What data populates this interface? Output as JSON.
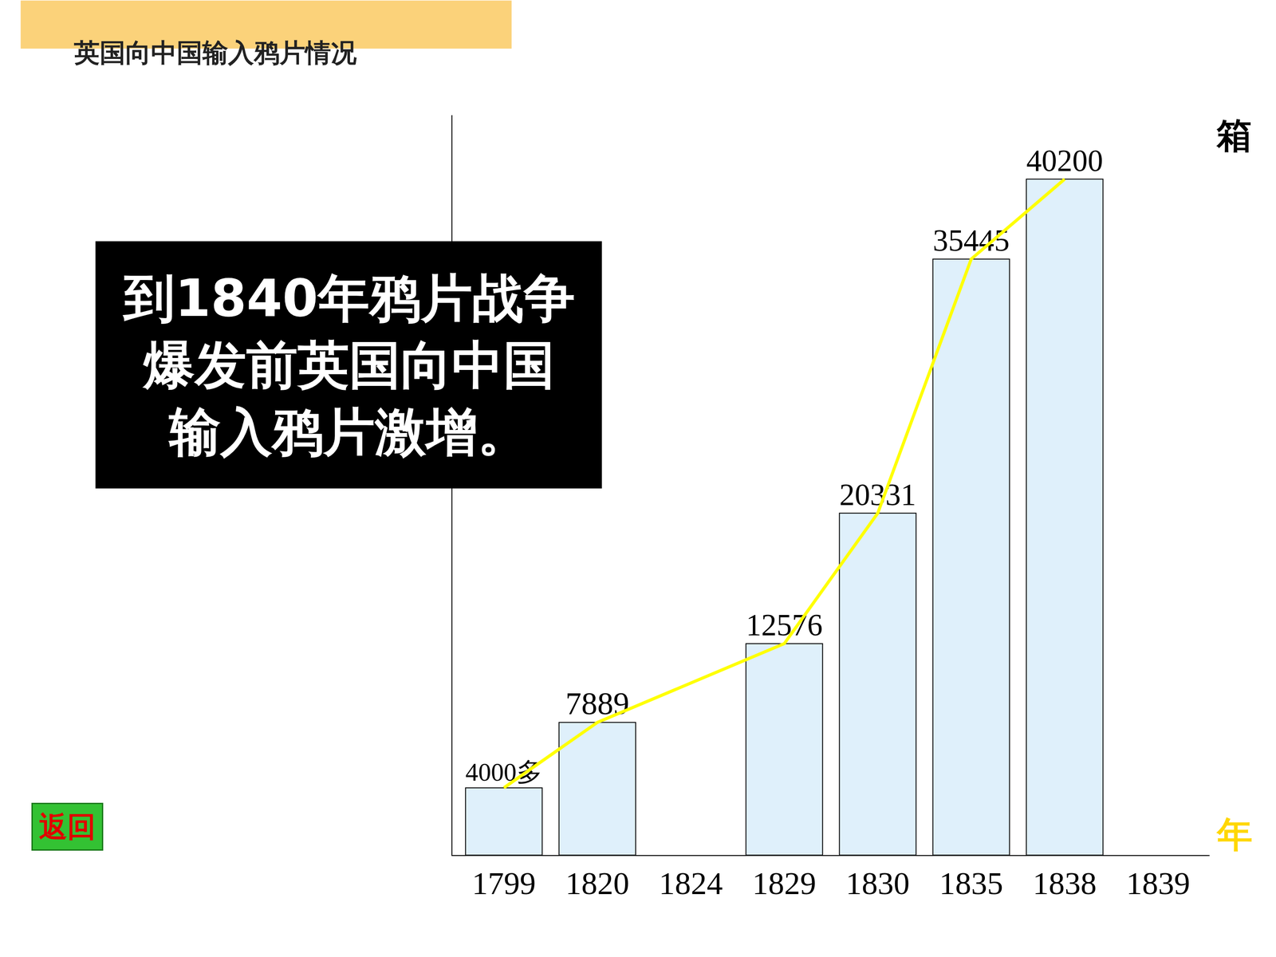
{
  "chart_data": {
    "type": "bar",
    "title": "英国向中国输入鸦片情况",
    "categories": [
      "1799",
      "1820",
      "1824",
      "1829",
      "1830",
      "1835",
      "1838",
      "1839"
    ],
    "series": [
      {
        "type": "bar",
        "color": "#dff0fb",
        "values": [
          4000,
          7889,
          null,
          12576,
          20331,
          35445,
          40200,
          null
        ],
        "value_labels": [
          "4000多",
          "7889",
          null,
          "12576",
          "20331",
          "35445",
          "40200",
          null
        ]
      },
      {
        "type": "line",
        "color": "#ffff00",
        "values": [
          4000,
          7889,
          null,
          12576,
          20331,
          35445,
          40200,
          null
        ]
      }
    ],
    "xlabel": "年",
    "ylabel": "箱",
    "ylim": [
      0,
      44000
    ],
    "data_labels": true,
    "tick_labels": "x",
    "grid": false,
    "annotations": [
      "到1840年鸦片战争爆发前英国向中国输入鸦片激增。",
      "返回"
    ]
  }
}
